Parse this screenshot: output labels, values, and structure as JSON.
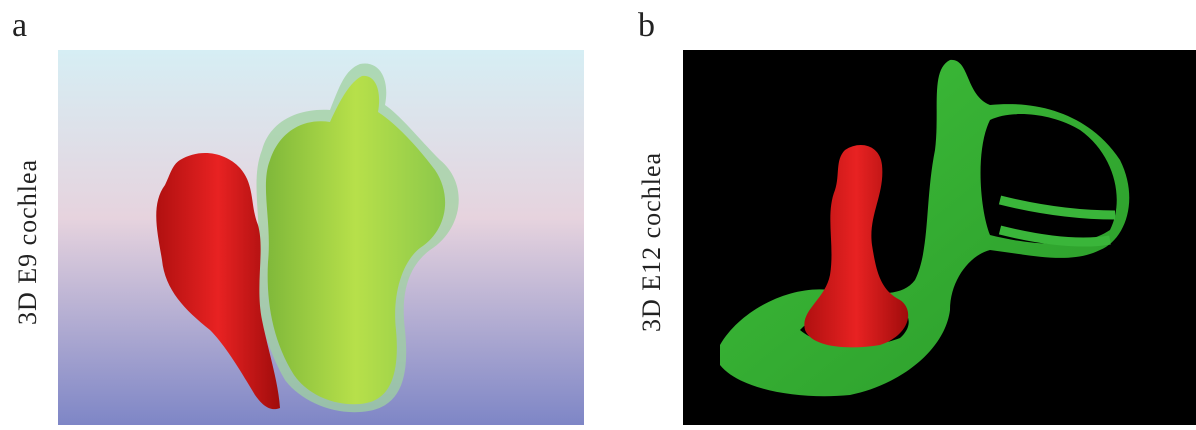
{
  "panels": [
    {
      "label": "a",
      "caption": "3D E9 cochlea"
    },
    {
      "label": "b",
      "caption": "3D E12 cochlea"
    }
  ]
}
